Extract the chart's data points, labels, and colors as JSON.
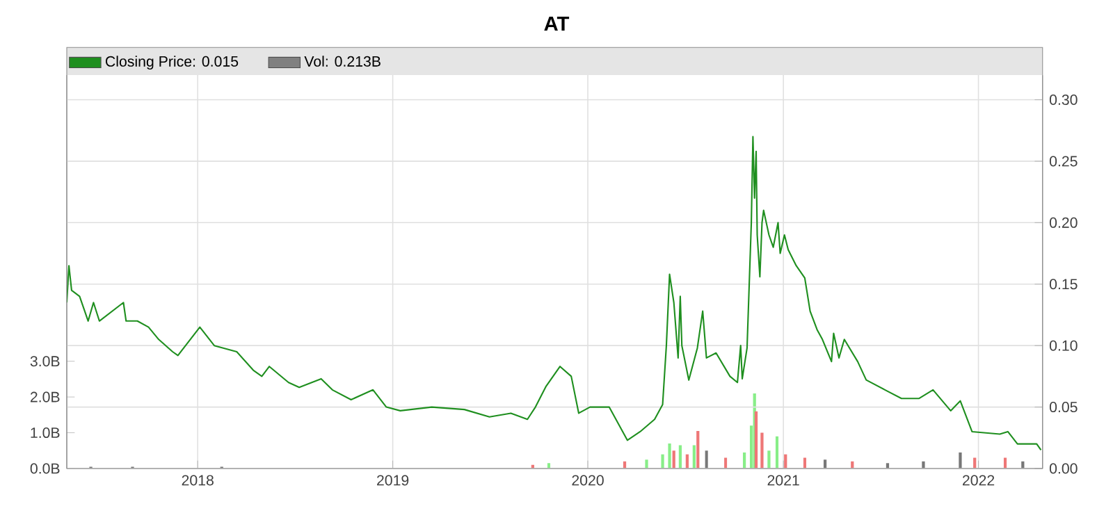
{
  "chart_data": {
    "type": "line",
    "title": "AT",
    "xlim": [
      "2017-05-01",
      "2022-05-01"
    ],
    "xticks": [
      {
        "value": "2018",
        "label": "2018"
      },
      {
        "value": "2019",
        "label": "2019"
      },
      {
        "value": "2020",
        "label": "2020"
      },
      {
        "value": "2021",
        "label": "2021"
      },
      {
        "value": "2022",
        "label": "2022"
      }
    ],
    "ylim": [
      0,
      0.32
    ],
    "yticks": [
      {
        "value": 0,
        "label": "0.00"
      },
      {
        "value": 0.05,
        "label": "0.05"
      },
      {
        "value": 0.1,
        "label": "0.10"
      },
      {
        "value": 0.15,
        "label": "0.15"
      },
      {
        "value": 0.2,
        "label": "0.20"
      },
      {
        "value": 0.25,
        "label": "0.25"
      },
      {
        "value": 0.3,
        "label": "0.30"
      }
    ],
    "y2lim": [
      0,
      11
    ],
    "y2ticks": [
      {
        "value": 0,
        "label": "0.0B"
      },
      {
        "value": 1,
        "label": "1.0B"
      },
      {
        "value": 2,
        "label": "2.0B"
      },
      {
        "value": 3,
        "label": "3.0B"
      }
    ],
    "grid": true,
    "legend": "top left",
    "marker": "none",
    "line_style": "solid",
    "series": [
      {
        "name": "Closing Price: 0.015",
        "color": "#1f8f1f",
        "x": [
          "2017-05-01",
          "2017-05-05",
          "2017-05-10",
          "2017-05-25",
          "2017-06-10",
          "2017-06-20",
          "2017-07-01",
          "2017-08-15",
          "2017-08-20",
          "2017-09-10",
          "2017-10-01",
          "2017-10-20",
          "2017-11-15",
          "2017-11-25",
          "2018-01-05",
          "2018-02-01",
          "2018-03-15",
          "2018-04-15",
          "2018-05-01",
          "2018-05-15",
          "2018-06-20",
          "2018-07-10",
          "2018-08-20",
          "2018-09-10",
          "2018-10-15",
          "2018-11-25",
          "2018-12-20",
          "2019-01-15",
          "2019-03-15",
          "2019-05-15",
          "2019-07-01",
          "2019-08-10",
          "2019-09-10",
          "2019-09-25",
          "2019-10-15",
          "2019-11-10",
          "2019-12-01",
          "2019-12-15",
          "2020-01-05",
          "2020-02-10",
          "2020-03-15",
          "2020-04-08",
          "2020-05-05",
          "2020-05-20",
          "2020-05-27",
          "2020-06-02",
          "2020-06-10",
          "2020-06-18",
          "2020-06-22",
          "2020-06-25",
          "2020-07-08",
          "2020-07-24",
          "2020-08-03",
          "2020-08-10",
          "2020-08-28",
          "2020-09-23",
          "2020-10-07",
          "2020-10-13",
          "2020-10-16",
          "2020-10-25",
          "2020-11-02",
          "2020-11-05",
          "2020-11-08",
          "2020-11-11",
          "2020-11-13",
          "2020-11-18",
          "2020-11-22",
          "2020-11-25",
          "2020-12-05",
          "2020-12-13",
          "2020-12-22",
          "2020-12-26",
          "2021-01-03",
          "2021-01-10",
          "2021-01-25",
          "2021-02-10",
          "2021-02-20",
          "2021-03-05",
          "2021-03-15",
          "2021-04-01",
          "2021-04-05",
          "2021-04-15",
          "2021-04-25",
          "2021-05-20",
          "2021-06-05",
          "2021-07-10",
          "2021-08-10",
          "2021-09-12",
          "2021-10-08",
          "2021-11-10",
          "2021-11-28",
          "2021-12-20",
          "2022-02-10",
          "2022-02-25",
          "2022-03-15",
          "2022-04-20",
          "2022-04-28"
        ],
        "values": [
          0.135,
          0.165,
          0.145,
          0.14,
          0.12,
          0.135,
          0.12,
          0.135,
          0.12,
          0.12,
          0.115,
          0.105,
          0.095,
          0.092,
          0.115,
          0.1,
          0.095,
          0.08,
          0.075,
          0.083,
          0.07,
          0.066,
          0.073,
          0.064,
          0.056,
          0.064,
          0.05,
          0.047,
          0.05,
          0.048,
          0.042,
          0.045,
          0.04,
          0.05,
          0.067,
          0.083,
          0.075,
          0.045,
          0.05,
          0.05,
          0.023,
          0.03,
          0.04,
          0.052,
          0.1,
          0.158,
          0.135,
          0.09,
          0.14,
          0.1,
          0.072,
          0.098,
          0.128,
          0.09,
          0.094,
          0.075,
          0.07,
          0.1,
          0.073,
          0.098,
          0.2,
          0.27,
          0.22,
          0.258,
          0.19,
          0.156,
          0.2,
          0.21,
          0.19,
          0.18,
          0.2,
          0.175,
          0.19,
          0.178,
          0.165,
          0.155,
          0.128,
          0.113,
          0.105,
          0.087,
          0.11,
          0.09,
          0.105,
          0.087,
          0.072,
          0.064,
          0.057,
          0.057,
          0.064,
          0.047,
          0.055,
          0.03,
          0.028,
          0.03,
          0.02,
          0.02,
          0.015
        ]
      },
      {
        "name": "Vol: 0.213B",
        "type": "bar",
        "axis": "y2",
        "color": "#808080",
        "x": [
          "2017-06-15",
          "2017-09-01",
          "2018-02-15",
          "2019-09-20",
          "2019-10-20",
          "2020-03-10",
          "2020-04-20",
          "2020-05-20",
          "2020-06-02",
          "2020-06-10",
          "2020-06-22",
          "2020-07-05",
          "2020-07-18",
          "2020-07-25",
          "2020-08-10",
          "2020-09-15",
          "2020-10-20",
          "2020-11-02",
          "2020-11-08",
          "2020-11-11",
          "2020-11-22",
          "2020-12-05",
          "2020-12-20",
          "2021-01-05",
          "2021-02-10",
          "2021-03-20",
          "2021-05-10",
          "2021-07-15",
          "2021-09-20",
          "2021-11-28",
          "2021-12-25",
          "2022-02-20",
          "2022-03-25"
        ],
        "values": [
          0.05,
          0.05,
          0.05,
          0.1,
          0.15,
          0.2,
          0.25,
          0.4,
          0.7,
          0.5,
          0.65,
          0.4,
          0.65,
          1.05,
          0.5,
          0.3,
          0.45,
          1.2,
          2.1,
          1.6,
          1.0,
          0.5,
          0.9,
          0.4,
          0.3,
          0.25,
          0.2,
          0.15,
          0.2,
          0.45,
          0.3,
          0.3,
          0.2
        ],
        "colors": [
          "#777777",
          "#777777",
          "#777777",
          "#ee7777",
          "#88ee88",
          "#ee7777",
          "#88ee88",
          "#88ee88",
          "#88ee88",
          "#ee7777",
          "#88ee88",
          "#ee7777",
          "#88ee88",
          "#ee7777",
          "#777777",
          "#ee7777",
          "#88ee88",
          "#88ee88",
          "#88ee88",
          "#ee7777",
          "#ee7777",
          "#88ee88",
          "#88ee88",
          "#ee7777",
          "#ee7777",
          "#777777",
          "#ee7777",
          "#777777",
          "#777777",
          "#777777",
          "#ee7777",
          "#ee7777",
          "#777777"
        ]
      }
    ]
  }
}
